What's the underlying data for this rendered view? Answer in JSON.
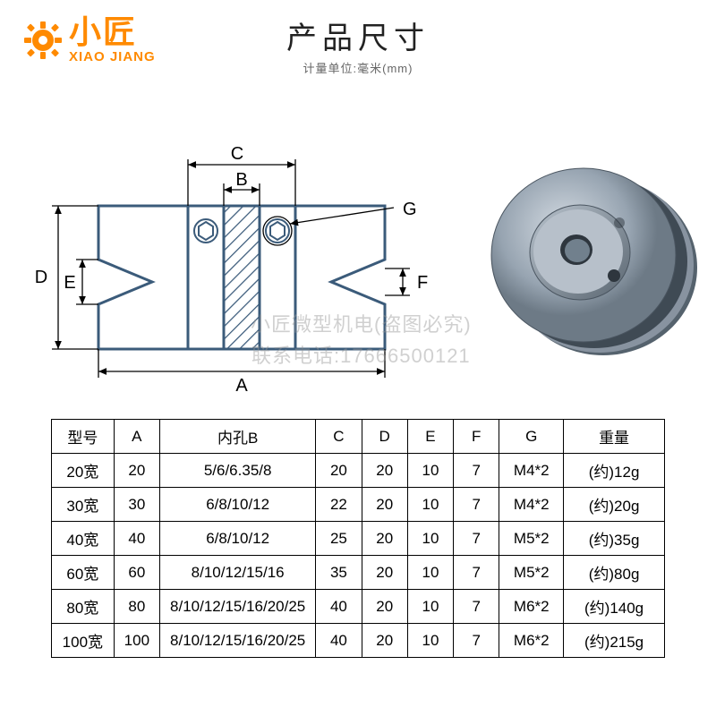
{
  "brand": {
    "cn": "小匠",
    "en": "XIAO JIANG",
    "color": "#ff8a00"
  },
  "title": {
    "main": "产品尺寸",
    "sub": "计量单位:毫米(mm)"
  },
  "watermark": {
    "line1": "小匠微型机电(盗图必究)",
    "line2": "联系电话:17666500121"
  },
  "diagram": {
    "labels": {
      "A": "A",
      "B": "B",
      "C": "C",
      "D": "D",
      "E": "E",
      "F": "F",
      "G": "G"
    },
    "stroke": "#3b5b7a",
    "hatch": "#3b5b7a"
  },
  "table": {
    "headers": [
      "型号",
      "A",
      "内孔B",
      "C",
      "D",
      "E",
      "F",
      "G",
      "重量"
    ],
    "rows": [
      [
        "20宽",
        "20",
        "5/6/6.35/8",
        "20",
        "20",
        "10",
        "7",
        "M4*2",
        "(约)12g"
      ],
      [
        "30宽",
        "30",
        "6/8/10/12",
        "22",
        "20",
        "10",
        "7",
        "M4*2",
        "(约)20g"
      ],
      [
        "40宽",
        "40",
        "6/8/10/12",
        "25",
        "20",
        "10",
        "7",
        "M5*2",
        "(约)35g"
      ],
      [
        "60宽",
        "60",
        "8/10/12/15/16",
        "35",
        "20",
        "10",
        "7",
        "M5*2",
        "(约)80g"
      ],
      [
        "80宽",
        "80",
        "8/10/12/15/16/20/25",
        "40",
        "20",
        "10",
        "7",
        "M6*2",
        "(约)140g"
      ],
      [
        "100宽",
        "100",
        "8/10/12/15/16/20/25",
        "40",
        "20",
        "10",
        "7",
        "M6*2",
        "(约)215g"
      ]
    ]
  },
  "render": {
    "body": "#9aa7b3",
    "shadow": "#6e7b87",
    "light": "#c8d0d8",
    "dark": "#4f5a64"
  }
}
